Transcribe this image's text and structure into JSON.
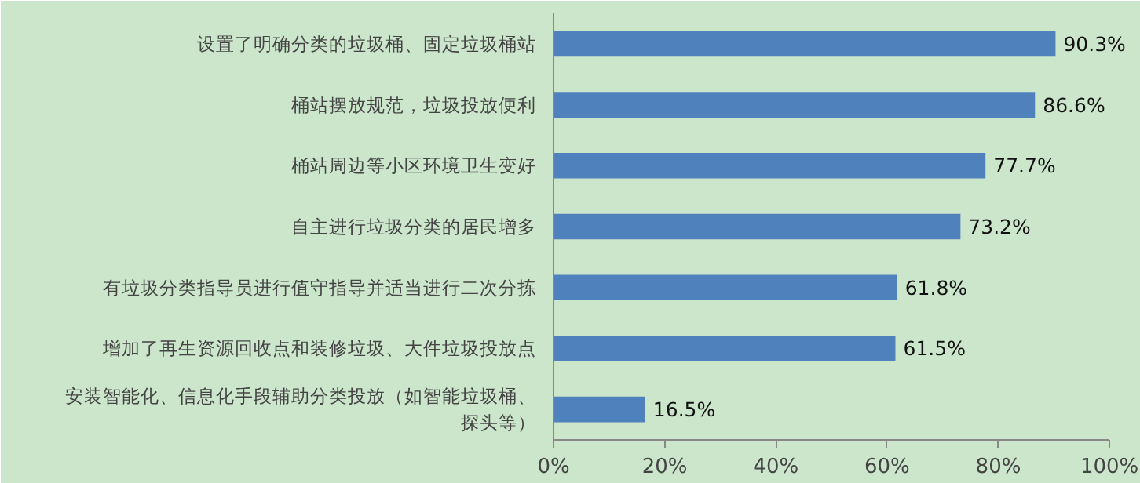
{
  "chart_data": {
    "type": "bar",
    "orientation": "horizontal",
    "categories": [
      "设置了明确分类的垃圾桶、固定垃圾桶站",
      "桶站摆放规范，垃圾投放便利",
      "桶站周边等小区环境卫生变好",
      "自主进行垃圾分类的居民增多",
      "有垃圾分类指导员进行值守指导并适当进行二次分拣",
      "增加了再生资源回收点和装修垃圾、大件垃圾投放点",
      "安装智能化、信息化手段辅助分类投放（如智能垃圾桶、探头等）"
    ],
    "values": [
      90.3,
      86.6,
      77.7,
      73.2,
      61.8,
      61.5,
      16.5
    ],
    "value_labels": [
      "90.3%",
      "86.6%",
      "77.7%",
      "73.2%",
      "61.8%",
      "61.5%",
      "16.5%"
    ],
    "color": "#4f81bd",
    "xlim": [
      0,
      100
    ],
    "xticks": [
      {
        "value": 0,
        "label": "0%"
      },
      {
        "value": 20,
        "label": "20%"
      },
      {
        "value": 40,
        "label": "40%"
      },
      {
        "value": 60,
        "label": "60%"
      },
      {
        "value": 80,
        "label": "80%"
      },
      {
        "value": 100,
        "label": "100%"
      }
    ],
    "grid": false
  }
}
